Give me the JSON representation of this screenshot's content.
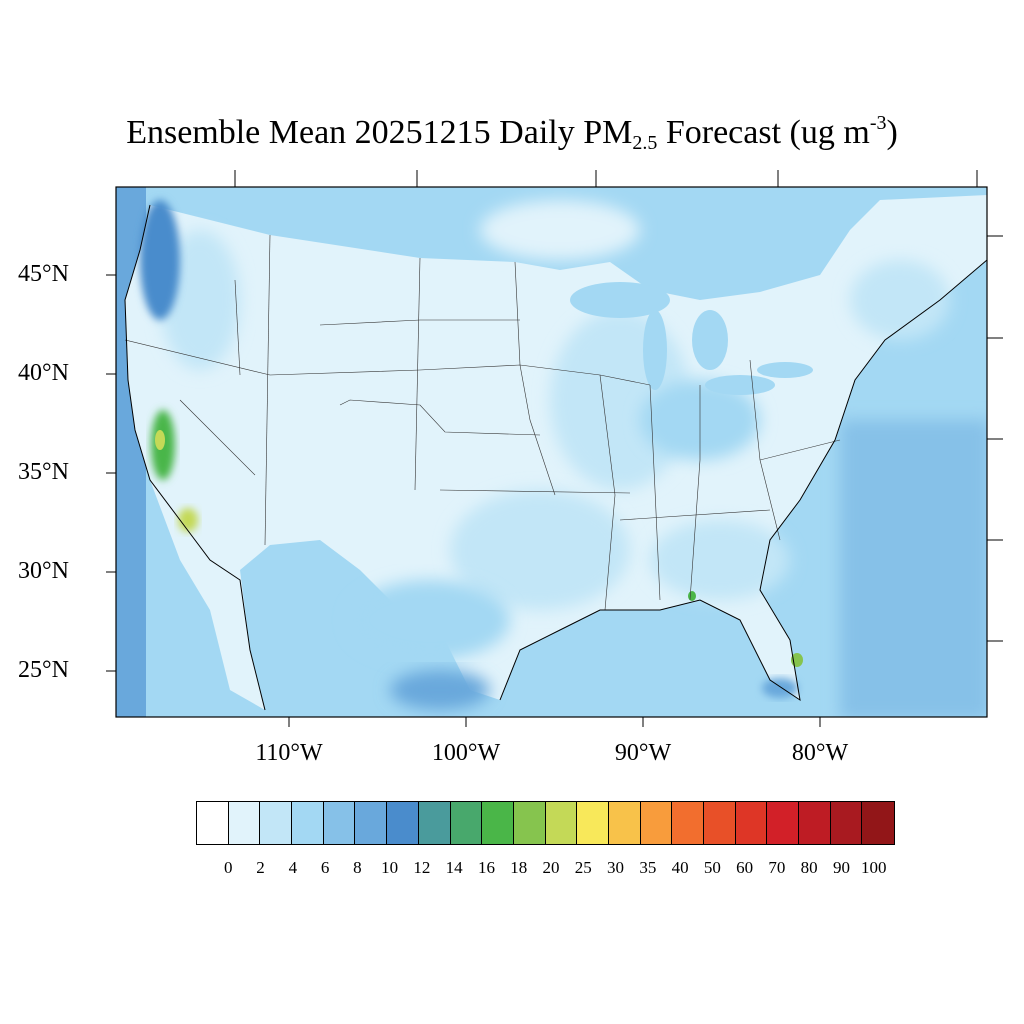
{
  "title": {
    "prefix": "Ensemble Mean 20251215 Daily PM",
    "subscript": "2.5",
    "middle": " Forecast (ug m",
    "superscript": "-3",
    "suffix": ")"
  },
  "lat_labels": [
    "45°N",
    "40°N",
    "35°N",
    "30°N",
    "25°N"
  ],
  "lon_labels": [
    "110°W",
    "100°W",
    "90°W",
    "80°W"
  ],
  "colorbar": {
    "labels": [
      "0",
      "2",
      "4",
      "6",
      "8",
      "10",
      "12",
      "14",
      "16",
      "18",
      "20",
      "25",
      "30",
      "35",
      "40",
      "50",
      "60",
      "70",
      "80",
      "90",
      "100"
    ],
    "colors": [
      "#ffffff",
      "#e1f3fb",
      "#c2e6f7",
      "#a3d8f3",
      "#86c1e8",
      "#69a8dc",
      "#4a8ccc",
      "#4a9b9c",
      "#48a86c",
      "#4ab648",
      "#86c44e",
      "#c4d957",
      "#f8e85a",
      "#f8c24a",
      "#f89c3c",
      "#f26e2e",
      "#e85028",
      "#de3626",
      "#d22028",
      "#be1c24",
      "#a81a20",
      "#921618"
    ]
  },
  "map": {
    "ocean_color": "#86c1e8",
    "land_base_color": "#e1f3fb",
    "hotspots": [
      {
        "name": "central-california",
        "color": "#4ab648"
      },
      {
        "name": "southern-california",
        "color": "#c4d957"
      },
      {
        "name": "gulf-coast",
        "color": "#4ab648"
      },
      {
        "name": "south-florida",
        "color": "#86c44e"
      }
    ]
  }
}
